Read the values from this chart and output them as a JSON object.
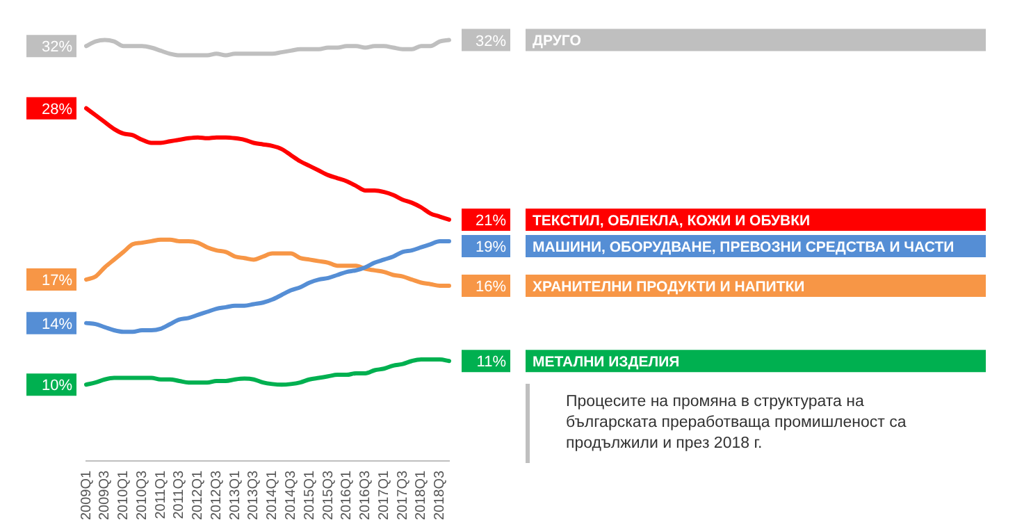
{
  "chart_data": {
    "type": "line",
    "categories": [
      "2009Q1",
      null,
      "2009Q3",
      null,
      "2010Q1",
      null,
      "2010Q3",
      null,
      "2011Q1",
      null,
      "2011Q3",
      null,
      "2012Q1",
      null,
      "2012Q3",
      null,
      "2013Q1",
      null,
      "2013Q3",
      null,
      "2014Q1",
      null,
      "2014Q3",
      null,
      "2015Q1",
      null,
      "2015Q3",
      null,
      "2016Q1",
      null,
      "2016Q3",
      null,
      "2017Q1",
      null,
      "2017Q3",
      null,
      "2018Q1",
      null,
      "2018Q3",
      null
    ],
    "tick_labels": "x",
    "marker": "none",
    "line_style": "solid",
    "grid": false,
    "legend": "right",
    "series": [
      {
        "name": "ДРУГО",
        "color": "#bfbfbf",
        "values": [
          32.0,
          32.3,
          32.4,
          32.3,
          32.0,
          32.0,
          32.0,
          31.9,
          31.7,
          31.5,
          31.4,
          31.4,
          31.4,
          31.4,
          31.5,
          31.4,
          31.5,
          31.5,
          31.5,
          31.5,
          31.5,
          31.6,
          31.7,
          31.8,
          31.8,
          31.8,
          31.9,
          31.9,
          32.0,
          32.0,
          31.9,
          32.0,
          32.0,
          31.9,
          31.8,
          31.8,
          32.0,
          32.0,
          32.3,
          32.4
        ],
        "value_labels": [
          "32%",
          null,
          null,
          null,
          null,
          null,
          null,
          null,
          null,
          null,
          null,
          null,
          null,
          null,
          null,
          null,
          null,
          null,
          null,
          null,
          null,
          null,
          null,
          null,
          null,
          null,
          null,
          null,
          null,
          null,
          null,
          null,
          null,
          null,
          null,
          null,
          null,
          null,
          null,
          "32%"
        ]
      },
      {
        "name": "ТЕКСТИЛ, ОБЛЕКЛА, КОЖИ И ОБУВКИ",
        "color": "#ff0000",
        "values": [
          27.95,
          27.5,
          27.05,
          26.6,
          26.3,
          26.2,
          25.9,
          25.7,
          25.7,
          25.8,
          25.9,
          26.0,
          26.05,
          26.0,
          26.05,
          26.05,
          26.0,
          25.9,
          25.7,
          25.6,
          25.5,
          25.3,
          24.9,
          24.5,
          24.2,
          23.9,
          23.6,
          23.4,
          23.2,
          22.9,
          22.6,
          22.6,
          22.5,
          22.3,
          22.0,
          21.8,
          21.5,
          21.1,
          20.9,
          20.7
        ],
        "value_labels": [
          "28%",
          null,
          null,
          null,
          null,
          null,
          null,
          null,
          null,
          null,
          null,
          null,
          null,
          null,
          null,
          null,
          null,
          null,
          null,
          null,
          null,
          null,
          null,
          null,
          null,
          null,
          null,
          null,
          null,
          null,
          null,
          null,
          null,
          null,
          null,
          null,
          null,
          null,
          null,
          "21%"
        ]
      },
      {
        "name": "МАШИНИ, ОБОРУДВАНЕ, ПРЕВОЗНИ СРЕДСТВА И ЧАСТИ",
        "color": "#558ed5",
        "values": [
          13.97,
          13.9,
          13.7,
          13.5,
          13.4,
          13.4,
          13.5,
          13.5,
          13.6,
          13.9,
          14.2,
          14.3,
          14.5,
          14.7,
          14.9,
          15.0,
          15.1,
          15.1,
          15.2,
          15.3,
          15.5,
          15.8,
          16.1,
          16.3,
          16.6,
          16.8,
          16.9,
          17.1,
          17.3,
          17.4,
          17.6,
          17.9,
          18.1,
          18.3,
          18.6,
          18.7,
          18.9,
          19.1,
          19.3,
          19.3
        ],
        "value_labels": [
          "14%",
          null,
          null,
          null,
          null,
          null,
          null,
          null,
          null,
          null,
          null,
          null,
          null,
          null,
          null,
          null,
          null,
          null,
          null,
          null,
          null,
          null,
          null,
          null,
          null,
          null,
          null,
          null,
          null,
          null,
          null,
          null,
          null,
          null,
          null,
          null,
          null,
          null,
          null,
          "19%"
        ]
      },
      {
        "name": "ХРАНИТЕЛНИ ПРОДУКТИ И НАПИТКИ",
        "color": "#f79646",
        "values": [
          16.8,
          17.0,
          17.6,
          18.1,
          18.6,
          19.1,
          19.2,
          19.3,
          19.4,
          19.4,
          19.3,
          19.3,
          19.2,
          18.9,
          18.7,
          18.6,
          18.3,
          18.2,
          18.1,
          18.3,
          18.5,
          18.5,
          18.5,
          18.2,
          18.1,
          18.0,
          17.9,
          17.7,
          17.7,
          17.7,
          17.5,
          17.4,
          17.3,
          17.1,
          17.0,
          16.8,
          16.6,
          16.5,
          16.4,
          16.4
        ],
        "value_labels": [
          "17%",
          null,
          null,
          null,
          null,
          null,
          null,
          null,
          null,
          null,
          null,
          null,
          null,
          null,
          null,
          null,
          null,
          null,
          null,
          null,
          null,
          null,
          null,
          null,
          null,
          null,
          null,
          null,
          null,
          null,
          null,
          null,
          null,
          null,
          null,
          null,
          null,
          null,
          null,
          "16%"
        ]
      },
      {
        "name": "МЕТАЛНИ ИЗДЕЛИЯ",
        "color": "#00b050",
        "values": [
          9.96,
          10.1,
          10.3,
          10.4,
          10.4,
          10.4,
          10.4,
          10.4,
          10.3,
          10.3,
          10.2,
          10.1,
          10.1,
          10.1,
          10.2,
          10.2,
          10.3,
          10.35,
          10.3,
          10.1,
          10.0,
          9.96,
          10.0,
          10.1,
          10.3,
          10.4,
          10.5,
          10.6,
          10.6,
          10.7,
          10.7,
          10.9,
          11.0,
          11.2,
          11.3,
          11.5,
          11.6,
          11.6,
          11.6,
          11.5
        ],
        "value_labels": [
          "10%",
          null,
          null,
          null,
          null,
          null,
          null,
          null,
          null,
          null,
          null,
          null,
          null,
          null,
          null,
          null,
          null,
          null,
          null,
          null,
          null,
          null,
          null,
          null,
          null,
          null,
          null,
          null,
          null,
          null,
          null,
          null,
          null,
          null,
          null,
          null,
          null,
          null,
          null,
          "11%"
        ]
      }
    ],
    "annotations": [
      "Процесите на промяна в структурата на българската преработваща промишленост са продължили и през 2018 г."
    ]
  }
}
